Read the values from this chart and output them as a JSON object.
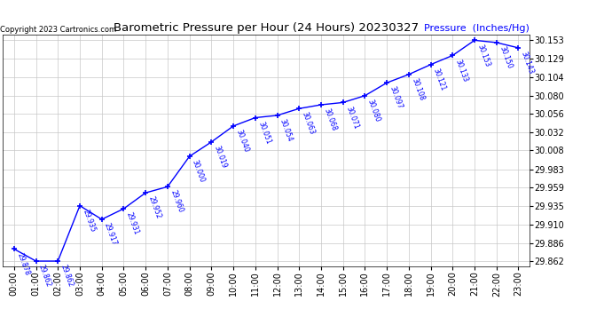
{
  "title": "Barometric Pressure per Hour (24 Hours) 20230327",
  "ylabel": "Pressure  (Inches/Hg)",
  "copyright": "Copyright 2023 Cartronics.com",
  "hours": [
    "00:00",
    "01:00",
    "02:00",
    "03:00",
    "04:00",
    "05:00",
    "06:00",
    "07:00",
    "08:00",
    "09:00",
    "10:00",
    "11:00",
    "12:00",
    "13:00",
    "14:00",
    "15:00",
    "16:00",
    "17:00",
    "18:00",
    "19:00",
    "20:00",
    "21:00",
    "22:00",
    "23:00"
  ],
  "values": [
    29.878,
    29.862,
    29.862,
    29.935,
    29.917,
    29.931,
    29.952,
    29.96,
    30.0,
    30.019,
    30.04,
    30.051,
    30.054,
    30.063,
    30.068,
    30.071,
    30.08,
    30.097,
    30.108,
    30.121,
    30.133,
    30.153,
    30.15,
    30.143
  ],
  "line_color": "#0000FF",
  "marker": "+",
  "background_color": "#FFFFFF",
  "plot_bg_color": "#FFFFFF",
  "grid_color": "#C8C8C8",
  "title_color": "#000000",
  "label_color": "#0000FF",
  "copyright_color": "#000000",
  "ylim_min": 29.855,
  "ylim_max": 30.16,
  "yticks": [
    29.862,
    29.886,
    29.91,
    29.935,
    29.959,
    29.983,
    30.008,
    30.032,
    30.056,
    30.08,
    30.104,
    30.129,
    30.153
  ]
}
